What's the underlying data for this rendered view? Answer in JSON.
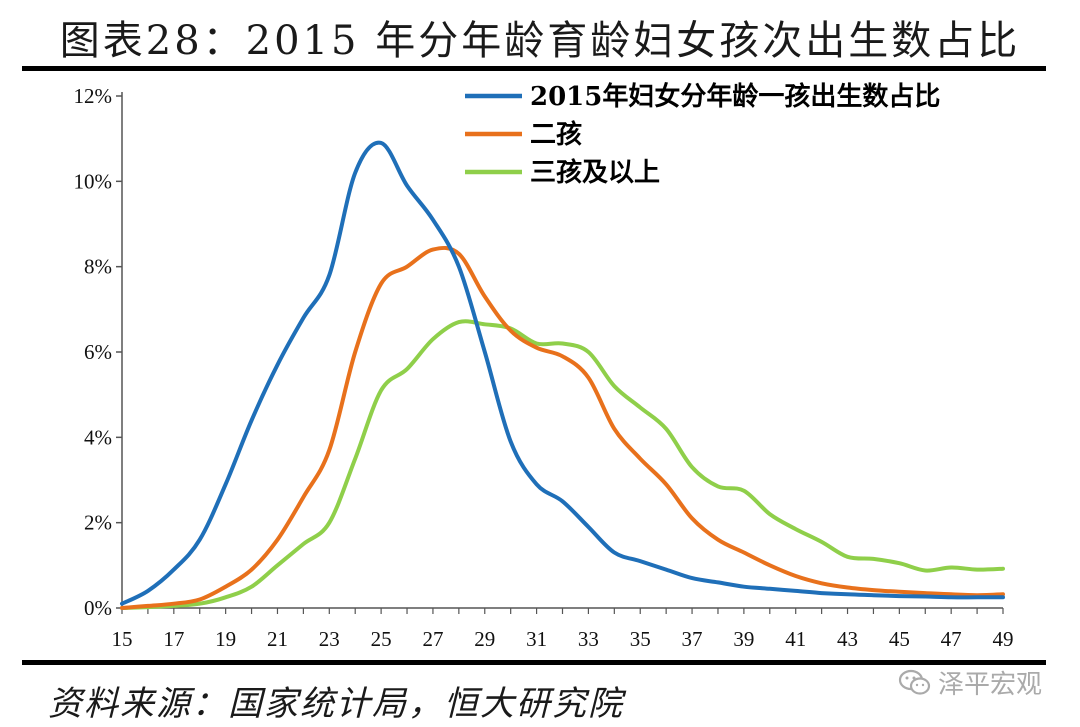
{
  "title": "图表28：2015 年分年龄育龄妇女孩次出生数占比",
  "source": "资料来源：国家统计局，恒大研究院",
  "watermark": {
    "text": "泽平宏观",
    "icon": "wechat-icon"
  },
  "chart_data": {
    "type": "line",
    "x": [
      15,
      16,
      17,
      18,
      19,
      20,
      21,
      22,
      23,
      24,
      25,
      26,
      27,
      28,
      29,
      30,
      31,
      32,
      33,
      34,
      35,
      36,
      37,
      38,
      39,
      40,
      41,
      42,
      43,
      44,
      45,
      46,
      47,
      48,
      49
    ],
    "x_ticks": [
      "15",
      "17",
      "19",
      "21",
      "23",
      "25",
      "27",
      "29",
      "31",
      "33",
      "35",
      "37",
      "39",
      "41",
      "43",
      "45",
      "47",
      "49"
    ],
    "y_ticks": [
      "0%",
      "2%",
      "4%",
      "6%",
      "8%",
      "10%",
      "12%"
    ],
    "ylim": [
      0,
      12
    ],
    "xlim": [
      15,
      49
    ],
    "legend_position": "top-right",
    "series": [
      {
        "name": "2015年妇女分年龄一孩出生数占比",
        "color": "#1f6fb8",
        "values": [
          0.1,
          0.4,
          0.9,
          1.6,
          2.9,
          4.4,
          5.7,
          6.8,
          7.8,
          10.2,
          10.9,
          9.9,
          9.1,
          8.0,
          6.0,
          3.9,
          2.9,
          2.5,
          1.9,
          1.3,
          1.1,
          0.9,
          0.7,
          0.6,
          0.5,
          0.45,
          0.4,
          0.35,
          0.32,
          0.3,
          0.28,
          0.27,
          0.25,
          0.25,
          0.25
        ]
      },
      {
        "name": "二孩",
        "color": "#e8711c",
        "values": [
          0.0,
          0.05,
          0.1,
          0.2,
          0.5,
          0.9,
          1.6,
          2.6,
          3.7,
          6.0,
          7.6,
          8.0,
          8.4,
          8.3,
          7.3,
          6.5,
          6.1,
          5.9,
          5.4,
          4.2,
          3.5,
          2.9,
          2.1,
          1.6,
          1.3,
          1.0,
          0.75,
          0.58,
          0.48,
          0.42,
          0.38,
          0.35,
          0.32,
          0.3,
          0.32
        ]
      },
      {
        "name": "三孩及以上",
        "color": "#8fcf4a",
        "values": [
          0.0,
          0.02,
          0.05,
          0.1,
          0.25,
          0.5,
          1.0,
          1.5,
          2.0,
          3.5,
          5.1,
          5.6,
          6.3,
          6.7,
          6.65,
          6.55,
          6.2,
          6.2,
          6.0,
          5.2,
          4.7,
          4.2,
          3.3,
          2.85,
          2.75,
          2.2,
          1.85,
          1.55,
          1.2,
          1.15,
          1.05,
          0.88,
          0.95,
          0.9,
          0.92
        ]
      }
    ]
  }
}
